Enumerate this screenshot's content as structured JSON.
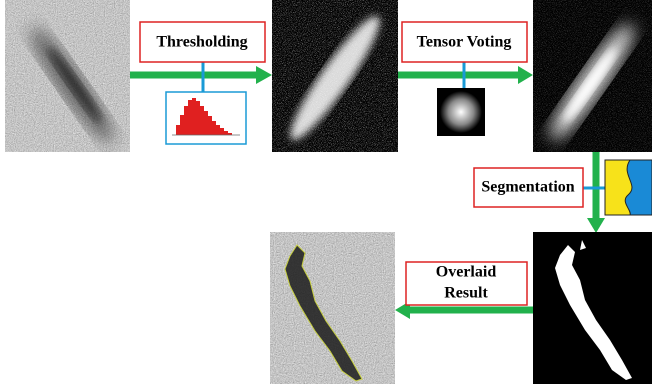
{
  "labels": [
    "Thresholding",
    "Tensor Voting",
    "Segmentation"
  ],
  "overlaid_result": [
    "Overlaid",
    "Result"
  ]
}
